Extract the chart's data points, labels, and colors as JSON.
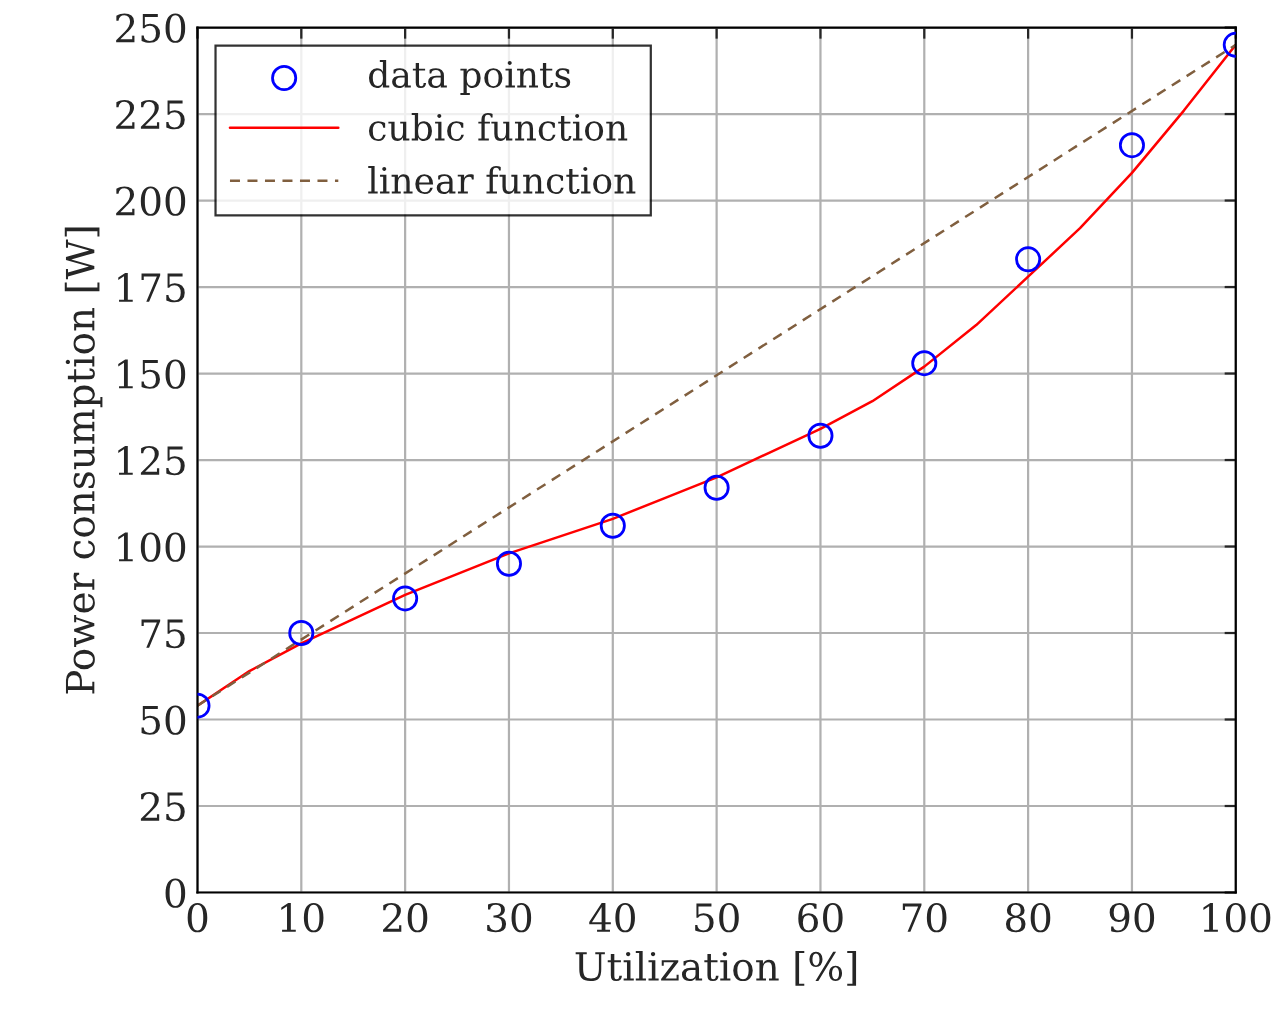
{
  "chart_data": {
    "type": "scatter",
    "xlabel": "Utilization [%]",
    "ylabel": "Power consumption [W]",
    "xlim": [
      0,
      100
    ],
    "ylim": [
      0,
      250
    ],
    "xticks": [
      0,
      10,
      20,
      30,
      40,
      50,
      60,
      70,
      80,
      90,
      100
    ],
    "yticks": [
      0,
      25,
      50,
      75,
      100,
      125,
      150,
      175,
      200,
      225,
      250
    ],
    "grid": true,
    "legend": "top left",
    "series": [
      {
        "name": "data points",
        "marker": "circle",
        "color": "#0000ff",
        "x": [
          0,
          10,
          20,
          30,
          40,
          50,
          60,
          70,
          80,
          90,
          100
        ],
        "values": [
          54,
          75,
          85,
          95,
          106,
          117,
          132,
          153,
          183,
          216,
          245
        ]
      },
      {
        "name": "cubic function",
        "type": "line",
        "line_style": "solid",
        "color": "#ff0000",
        "x": [
          0,
          5,
          10,
          15,
          20,
          25,
          30,
          35,
          40,
          45,
          50,
          55,
          60,
          65,
          70,
          75,
          80,
          85,
          90,
          95,
          100
        ],
        "values": [
          54,
          64,
          72,
          79,
          86,
          92,
          98,
          103,
          108,
          114,
          120,
          127,
          134,
          142,
          152,
          164,
          178,
          192,
          208,
          226,
          245
        ]
      },
      {
        "name": "linear function",
        "type": "line",
        "line_style": "dashed",
        "color": "#805f3f",
        "x": [
          0,
          100
        ],
        "values": [
          54,
          245
        ]
      }
    ]
  }
}
